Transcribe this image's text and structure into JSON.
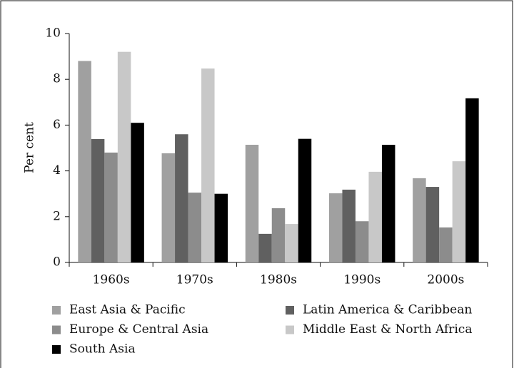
{
  "chart_data": {
    "type": "bar",
    "y_label": "Per cent",
    "categories": [
      "1960s",
      "1970s",
      "1980s",
      "1990s",
      "2000s"
    ],
    "series": [
      {
        "name": "East Asia & Pacific",
        "color": "#a0a0a0",
        "values": [
          8.8,
          4.77,
          5.14,
          3.02,
          3.68
        ]
      },
      {
        "name": "Latin America & Caribbean",
        "color": "#606060",
        "values": [
          5.39,
          5.6,
          1.25,
          3.18,
          3.3
        ]
      },
      {
        "name": "Europe & Central Asia",
        "color": "#8c8c8c",
        "values": [
          4.8,
          3.05,
          2.37,
          1.8,
          1.53
        ]
      },
      {
        "name": "Middle East & North Africa",
        "color": "#c8c8c8",
        "values": [
          9.2,
          8.47,
          1.68,
          3.96,
          4.42
        ]
      },
      {
        "name": "South Asia",
        "color": "#000000",
        "values": [
          6.1,
          3.0,
          5.4,
          5.14,
          7.17
        ]
      }
    ],
    "ylim": [
      0,
      10
    ],
    "yticks": [
      0,
      2,
      4,
      6,
      8,
      10
    ]
  }
}
